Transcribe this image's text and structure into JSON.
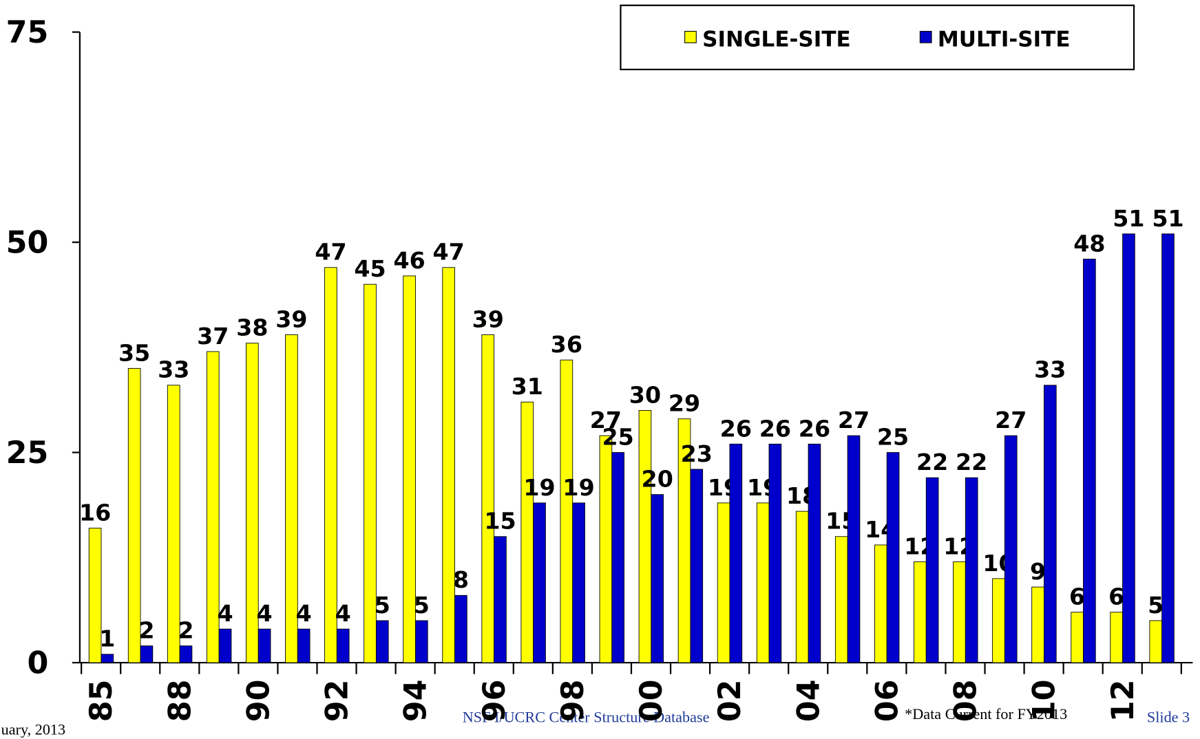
{
  "chart_data": {
    "type": "bar",
    "categories": [
      "85",
      null,
      "88",
      null,
      "90",
      null,
      "92",
      null,
      "94",
      null,
      "96",
      null,
      "98",
      null,
      "00",
      null,
      "02",
      null,
      "04",
      null,
      "06",
      null,
      "08",
      null,
      "10",
      null,
      "12",
      null
    ],
    "series": [
      {
        "name": "SINGLE-SITE",
        "color": "#ffff00",
        "values": [
          16,
          35,
          33,
          37,
          38,
          39,
          47,
          45,
          46,
          47,
          39,
          31,
          36,
          27,
          30,
          29,
          19,
          19,
          18,
          15,
          14,
          12,
          12,
          10,
          9,
          6,
          6,
          5
        ]
      },
      {
        "name": "MULTI-SITE",
        "color": "#0000cc",
        "values": [
          1,
          2,
          2,
          4,
          4,
          4,
          4,
          5,
          5,
          8,
          15,
          19,
          19,
          25,
          20,
          23,
          26,
          26,
          26,
          27,
          25,
          22,
          22,
          27,
          33,
          48,
          51,
          51
        ]
      }
    ],
    "ylim": [
      0,
      75
    ],
    "yticks": [
      0,
      25,
      50,
      75
    ],
    "grid": false,
    "legend": "top-right",
    "footer": {
      "date": "uary, 2013",
      "source": "NSF I/UCRC Center Structure Database",
      "note": "*Data Current for FY2013",
      "slide": "Slide 3"
    }
  }
}
